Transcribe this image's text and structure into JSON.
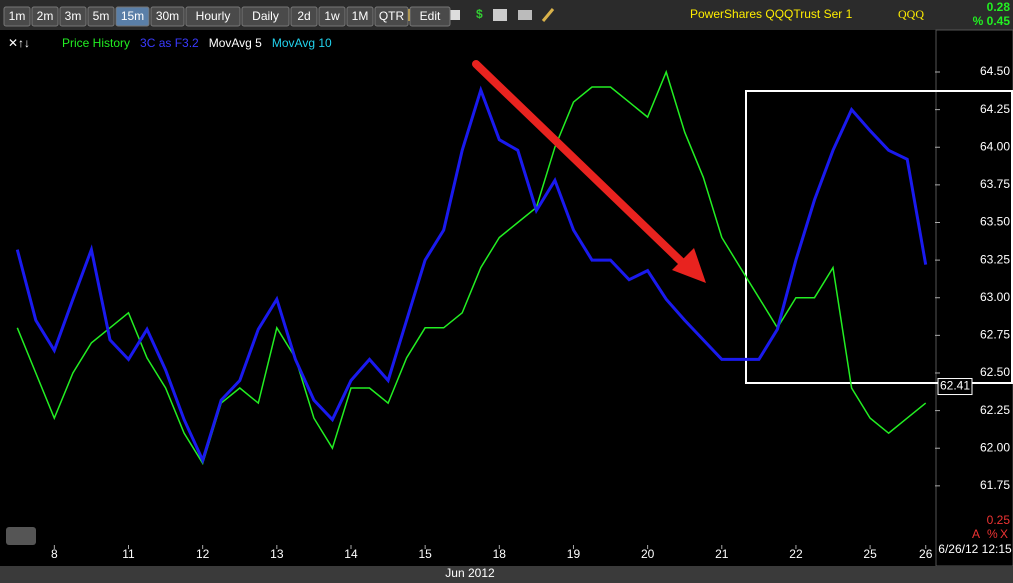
{
  "toolbar": {
    "buttons": [
      "1m",
      "2m",
      "3m",
      "5m",
      "15m",
      "30m",
      "Hourly",
      "Daily",
      "2d",
      "1w",
      "1M",
      "QTR",
      "Edit"
    ],
    "active": "15m"
  },
  "header": {
    "name": "PowerShares QQQTrust Ser 1",
    "symbol": "QQQ",
    "change": "0.28",
    "change_pct": "% 0.45"
  },
  "indicators": [
    {
      "name": "MovAvg 5",
      "color": "#ffffff"
    },
    {
      "name": "MovAvg 10",
      "color": "#22d3ee"
    }
  ],
  "footer": {
    "corner_value": "0.25",
    "corner_buttons": [
      "A",
      "%",
      "X"
    ],
    "timestamp": "6/26/12 12:15"
  },
  "chart_data": {
    "type": "line",
    "xlabel": "Jun 2012",
    "categories": [
      null,
      null,
      "8",
      null,
      null,
      null,
      "11",
      null,
      null,
      null,
      "12",
      null,
      null,
      null,
      "13",
      null,
      null,
      null,
      "14",
      null,
      null,
      null,
      "15",
      null,
      null,
      null,
      "18",
      null,
      null,
      null,
      "19",
      null,
      null,
      null,
      "20",
      null,
      null,
      null,
      "21",
      null,
      null,
      null,
      "22",
      null,
      null,
      null,
      "25",
      null,
      null,
      "26"
    ],
    "series": [
      {
        "name": "Price History",
        "color": "#22ee22",
        "values": [
          62.8,
          62.5,
          62.2,
          62.5,
          62.7,
          62.8,
          62.9,
          62.6,
          62.4,
          62.1,
          61.9,
          62.3,
          62.4,
          62.3,
          62.8,
          62.6,
          62.2,
          62.0,
          62.4,
          62.4,
          62.3,
          62.6,
          62.8,
          62.8,
          62.9,
          63.2,
          63.4,
          63.5,
          63.6,
          64.0,
          64.3,
          64.4,
          64.4,
          64.3,
          64.2,
          64.5,
          64.1,
          63.8,
          63.4,
          63.2,
          63.0,
          62.8,
          63.0,
          63.0,
          63.2,
          62.4,
          62.2,
          62.1,
          62.2,
          62.3
        ]
      },
      {
        "name": "3C as F3.2",
        "color": "#1a1aee",
        "values": [
          63.32,
          62.85,
          62.65,
          62.99,
          63.32,
          62.72,
          62.59,
          62.79,
          62.52,
          62.19,
          61.92,
          62.32,
          62.45,
          62.79,
          62.99,
          62.59,
          62.32,
          62.19,
          62.45,
          62.59,
          62.45,
          62.85,
          63.25,
          63.45,
          63.98,
          64.38,
          64.05,
          63.98,
          63.58,
          63.78,
          63.45,
          63.25,
          63.25,
          63.12,
          63.18,
          62.99,
          62.85,
          62.72,
          62.59,
          62.59,
          62.59,
          62.79,
          63.25,
          63.65,
          63.98,
          64.25,
          64.11,
          63.98,
          63.92,
          63.22
        ]
      }
    ],
    "ylim": [
      61.6,
      64.65
    ],
    "yticks": [
      {
        "value": 61.75,
        "label": "61.75"
      },
      {
        "value": 62,
        "label": "62.00"
      },
      62.25,
      {
        "value": 62.5,
        "label": "62.50"
      },
      62.75,
      {
        "value": 63,
        "label": "63.00"
      },
      63.25,
      {
        "value": 63.5,
        "label": "63.50"
      },
      63.75,
      {
        "value": 64,
        "label": "64.00"
      },
      64.25,
      {
        "value": 64.5,
        "label": "64.50"
      }
    ],
    "last_price": 62.41
  }
}
